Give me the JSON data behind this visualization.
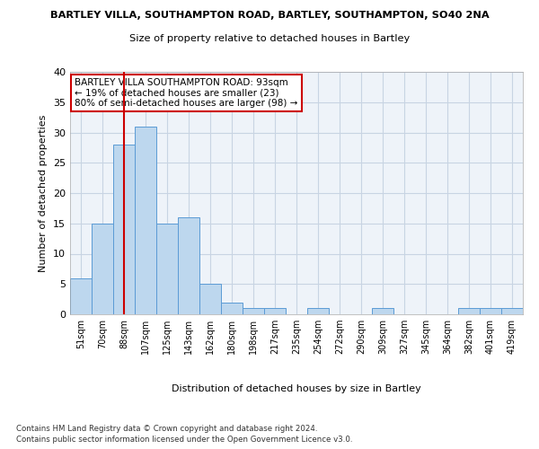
{
  "title1": "BARTLEY VILLA, SOUTHAMPTON ROAD, BARTLEY, SOUTHAMPTON, SO40 2NA",
  "title2": "Size of property relative to detached houses in Bartley",
  "xlabel": "Distribution of detached houses by size in Bartley",
  "ylabel": "Number of detached properties",
  "categories": [
    "51sqm",
    "70sqm",
    "88sqm",
    "107sqm",
    "125sqm",
    "143sqm",
    "162sqm",
    "180sqm",
    "198sqm",
    "217sqm",
    "235sqm",
    "254sqm",
    "272sqm",
    "290sqm",
    "309sqm",
    "327sqm",
    "345sqm",
    "364sqm",
    "382sqm",
    "401sqm",
    "419sqm"
  ],
  "values": [
    6,
    15,
    28,
    31,
    15,
    16,
    5,
    2,
    1,
    1,
    0,
    1,
    0,
    0,
    1,
    0,
    0,
    0,
    1,
    1,
    1
  ],
  "bar_color": "#bdd7ee",
  "bar_edge_color": "#5b9bd5",
  "grid_color": "#c8d4e3",
  "background_color": "#eef3f9",
  "annotation_text": "BARTLEY VILLA SOUTHAMPTON ROAD: 93sqm\n← 19% of detached houses are smaller (23)\n80% of semi-detached houses are larger (98) →",
  "ref_line_color": "#cc0000",
  "ylim": [
    0,
    40
  ],
  "yticks": [
    0,
    5,
    10,
    15,
    20,
    25,
    30,
    35,
    40
  ],
  "footnote1": "Contains HM Land Registry data © Crown copyright and database right 2024.",
  "footnote2": "Contains public sector information licensed under the Open Government Licence v3.0."
}
